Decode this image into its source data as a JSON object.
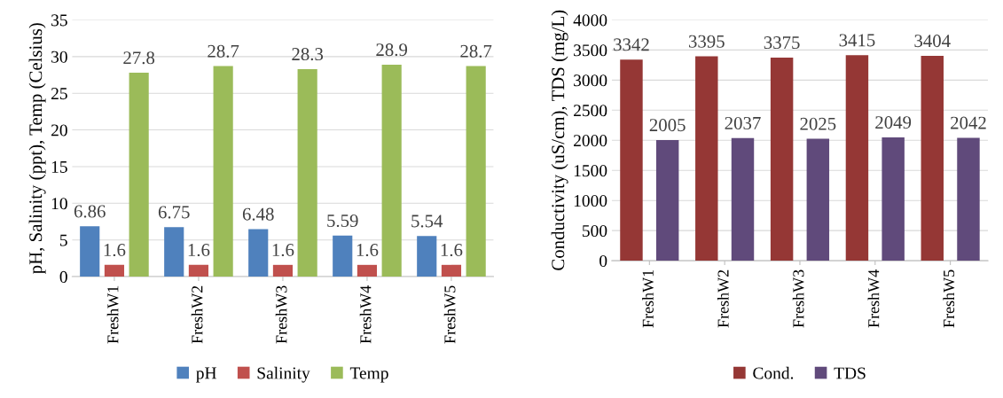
{
  "chart_data": [
    {
      "type": "bar",
      "ylabel": "pH, Salinity (ppt), Temp (Celsius)",
      "categories": [
        "FreshW1",
        "FreshW2",
        "FreshW3",
        "FreshW4",
        "FreshW5"
      ],
      "series": [
        {
          "name": "pH",
          "color": "#4f81bd",
          "values": [
            6.86,
            6.75,
            6.48,
            5.59,
            5.54
          ]
        },
        {
          "name": "Salinity",
          "color": "#c0504d",
          "values": [
            1.6,
            1.6,
            1.6,
            1.6,
            1.6
          ]
        },
        {
          "name": "Temp",
          "color": "#9bbb59",
          "values": [
            27.8,
            28.7,
            28.3,
            28.9,
            28.7
          ]
        }
      ],
      "ylim": [
        0,
        35
      ],
      "yticks": [
        0,
        5,
        10,
        15,
        20,
        25,
        30,
        35
      ],
      "grid": "y",
      "legend": "bottom",
      "data_labels": true
    },
    {
      "type": "bar",
      "ylabel": "Conductivity (uS/cm), TDS (mg/L)",
      "categories": [
        "FreshW1",
        "FreshW2",
        "FreshW3",
        "FreshW4",
        "FreshW5"
      ],
      "series": [
        {
          "name": "Cond.",
          "color": "#953735",
          "values": [
            3342,
            3395,
            3375,
            3415,
            3404
          ]
        },
        {
          "name": "TDS",
          "color": "#604a7b",
          "values": [
            2005,
            2037,
            2025,
            2049,
            2042
          ]
        }
      ],
      "ylim": [
        0,
        4000
      ],
      "yticks": [
        0,
        500,
        1000,
        1500,
        2000,
        2500,
        3000,
        3500,
        4000
      ],
      "grid": "y",
      "legend": "bottom",
      "data_labels": true
    }
  ]
}
